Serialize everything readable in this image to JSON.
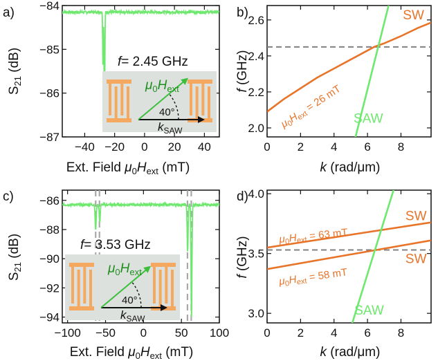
{
  "colors": {
    "green": "#6ee86e",
    "orange": "#e8742a",
    "dashed": "#808080",
    "inset_bg": "#dde1de",
    "transducer": "#f4a860"
  },
  "chart_data": [
    {
      "id": "a",
      "panel_label": "a)",
      "type": "line",
      "xlabel_prefix": "Ext. Field ",
      "xlabel_mu": "μ",
      "xlabel_sub0": "0",
      "xlabel_H": "H",
      "xlabel_sub_ext": "ext",
      "xlabel_unit": " (mT)",
      "ylabel_main": "S",
      "ylabel_sub": "21",
      "ylabel_unit": " (dB)",
      "xlim": [
        -55,
        50
      ],
      "ylim": [
        -87,
        -84
      ],
      "xticks": [
        -40,
        -20,
        0,
        20,
        40
      ],
      "yticks": [
        -87,
        -86,
        -85,
        -84
      ],
      "xtick_labels": [
        "−40",
        "−20",
        "0",
        "20",
        "40"
      ],
      "ytick_labels": [
        "−87",
        "−86",
        "−85",
        "−84"
      ],
      "series": [
        {
          "color": "green",
          "baseline": -84.15,
          "noise": 0.03,
          "dips": [
            {
              "x": -26.8,
              "depth": -2.65,
              "width": 0.35
            },
            {
              "x": -27.8,
              "depth": -1.2,
              "width": 0.3
            }
          ]
        }
      ],
      "inset": {
        "f_label": "f",
        "f_value": "= 2.45 GHz",
        "mu": "μ",
        "sub0": "0",
        "H": "H",
        "ext": "ext",
        "angle": "40°",
        "k": "k",
        "saw": "SAW"
      }
    },
    {
      "id": "b",
      "panel_label": "b)",
      "type": "line",
      "xlabel_k": "k",
      "xlabel_unit": " (rad/μm)",
      "ylabel_f": "f",
      "ylabel_unit": " (GHz)",
      "xlim": [
        0,
        9.8
      ],
      "ylim": [
        1.95,
        2.68
      ],
      "xticks": [
        0,
        2,
        4,
        6,
        8
      ],
      "yticks": [
        2.0,
        2.2,
        2.4,
        2.6
      ],
      "xtick_labels": [
        "0",
        "2",
        "4",
        "6",
        "8"
      ],
      "ytick_labels": [
        "2.0",
        "2.2",
        "2.4",
        "2.6"
      ],
      "hline": 2.45,
      "series": [
        {
          "name": "SW",
          "color": "orange",
          "x": [
            0,
            1,
            2,
            3,
            4,
            5,
            6,
            6.4,
            7,
            8,
            9,
            9.8
          ],
          "y": [
            2.09,
            2.16,
            2.22,
            2.28,
            2.33,
            2.38,
            2.43,
            2.45,
            2.47,
            2.51,
            2.555,
            2.585
          ]
        },
        {
          "name": "SAW",
          "color": "green",
          "x": [
            5.15,
            7.45
          ],
          "y": [
            1.9,
            2.75
          ]
        }
      ],
      "labels": [
        {
          "text": "SW",
          "color": "orange",
          "x": 8.75,
          "y": 2.63
        },
        {
          "text": "SAW",
          "color": "green",
          "x": 6.05,
          "y": 2.055
        }
      ],
      "field_label": {
        "mu": "μ",
        "sub0": "0",
        "H": "H",
        "ext": "ext",
        "value": " = 26 mT"
      }
    },
    {
      "id": "c",
      "panel_label": "c)",
      "type": "line",
      "xlabel_prefix": "Ext. Field ",
      "xlabel_mu": "μ",
      "xlabel_sub0": "0",
      "xlabel_H": "H",
      "xlabel_sub_ext": "ext",
      "xlabel_unit": " (mT)",
      "ylabel_main": "S",
      "ylabel_sub": "21",
      "ylabel_unit": " (dB)",
      "xlim": [
        -107,
        100
      ],
      "ylim": [
        -94.4,
        -85.3
      ],
      "xticks": [
        -100,
        -50,
        0,
        50,
        100
      ],
      "yticks": [
        -94,
        -92,
        -90,
        -88,
        -86
      ],
      "xtick_labels": [
        "−100",
        "−50",
        "0",
        "50",
        "100"
      ],
      "ytick_labels": [
        "−94",
        "−92",
        "−90",
        "−88",
        "−86"
      ],
      "vlines": [
        -63,
        -58,
        58,
        63
      ],
      "series": [
        {
          "color": "green",
          "baseline": -86.3,
          "noise": 0.08,
          "dips": [
            {
              "x": -63,
              "depth": -1.7,
              "width": 1.0
            },
            {
              "x": -57.6,
              "depth": -1.2,
              "width": 0.9
            },
            {
              "x": 58.2,
              "depth": -3.2,
              "width": 0.9
            },
            {
              "x": 63.3,
              "depth": -7.6,
              "width": 0.9
            }
          ]
        }
      ],
      "inset": {
        "f_label": "f",
        "f_value": "= 3.53 GHz",
        "mu": "μ",
        "sub0": "0",
        "H": "H",
        "ext": "ext",
        "angle": "40°",
        "k": "k",
        "saw": "SAW"
      }
    },
    {
      "id": "d",
      "panel_label": "d)",
      "type": "line",
      "xlabel_k": "k",
      "xlabel_unit": " (rad/μm)",
      "ylabel_f": "f",
      "ylabel_unit": " (GHz)",
      "xlim": [
        0,
        9.8
      ],
      "ylim": [
        2.92,
        4.03
      ],
      "xticks": [
        0,
        2,
        4,
        6,
        8
      ],
      "yticks": [
        3.0,
        3.5,
        4.0
      ],
      "xtick_labels": [
        "0",
        "2",
        "4",
        "6",
        "8"
      ],
      "ytick_labels": [
        "3.0",
        "3.5",
        "4.0"
      ],
      "hline": 3.53,
      "series": [
        {
          "name": "SW",
          "color": "orange",
          "x": [
            0,
            9.8
          ],
          "y": [
            3.55,
            3.76
          ]
        },
        {
          "name": "SW",
          "color": "orange",
          "x": [
            0,
            9.8
          ],
          "y": [
            3.37,
            3.61
          ]
        },
        {
          "name": "SAW",
          "color": "green",
          "x": [
            5.05,
            7.6
          ],
          "y": [
            2.9,
            4.05
          ]
        }
      ],
      "labels": [
        {
          "text": "SW",
          "color": "orange",
          "x": 8.9,
          "y": 3.82
        },
        {
          "text": "SW",
          "color": "orange",
          "x": 8.9,
          "y": 3.46
        },
        {
          "text": "SAW",
          "color": "green",
          "x": 6.1,
          "y": 3.03
        }
      ],
      "field_labels": [
        {
          "mu": "μ",
          "sub0": "0",
          "H": "H",
          "ext": "ext",
          "value": " = 63 mT"
        },
        {
          "mu": "μ",
          "sub0": "0",
          "H": "H",
          "ext": "ext",
          "value": " = 58 mT"
        }
      ]
    }
  ]
}
